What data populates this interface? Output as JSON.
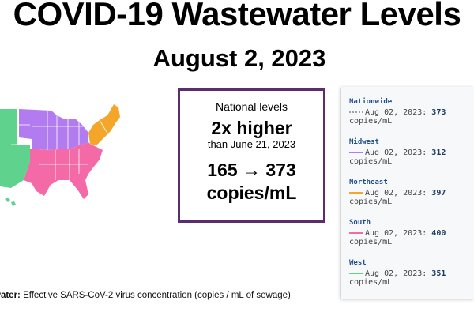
{
  "title": "COVID-19 Wastewater Levels",
  "subtitle": "August 2, 2023",
  "card": {
    "line1": "National levels",
    "headline": "2x higher",
    "line3": "than June 21, 2023",
    "values": "165 → 373",
    "unit": "copies/mL"
  },
  "caption": {
    "bold": "water:",
    "text": " Effective SARS-CoV-2 virus concentration (copies / mL of sewage)"
  },
  "colors": {
    "west": "#5fd38e",
    "midwest": "#b27bf0",
    "northeast": "#f4a62a",
    "south": "#f46aa6",
    "border": "#ffffff"
  },
  "chart_data": {
    "type": "table",
    "date": "Aug 02, 2023",
    "unit": "copies/mL",
    "series": [
      {
        "name": "Nationwide",
        "value": 373,
        "color": "#9aa4b2"
      },
      {
        "name": "Midwest",
        "value": 312,
        "color": "#b27bf0"
      },
      {
        "name": "Northeast",
        "value": 397,
        "color": "#f4a62a"
      },
      {
        "name": "South",
        "value": 400,
        "color": "#f46aa6"
      },
      {
        "name": "West",
        "value": 351,
        "color": "#5fd38e"
      }
    ]
  }
}
